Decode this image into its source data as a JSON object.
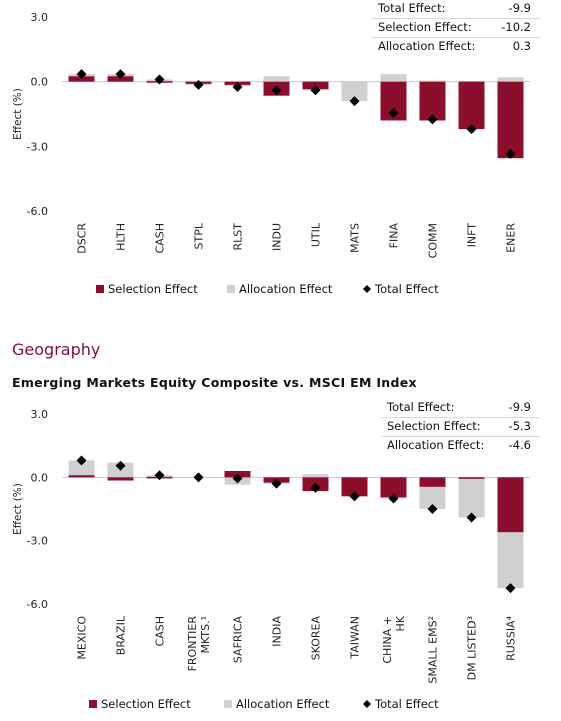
{
  "geography_section": {
    "heading": "Geography",
    "subtitle": "Emerging Markets Equity Composite vs. MSCI EM Index"
  },
  "chart_data": [
    {
      "type": "bar",
      "ylabel": "Effect (%)",
      "ylim": [
        -6.0,
        3.0
      ],
      "yticks": [
        "3.0",
        "0.0",
        "-3.0",
        "-6.0"
      ],
      "categories": [
        "DSCR",
        "HLTH",
        "CASH",
        "STPL",
        "RLST",
        "INDU",
        "UTIL",
        "MATS",
        "FINA",
        "COMM",
        "INFT",
        "ENER"
      ],
      "series": [
        {
          "name": "Selection Effect",
          "type": "bar",
          "color": "#8b0f2b",
          "values": [
            0.25,
            0.25,
            0.02,
            -0.1,
            -0.15,
            -0.65,
            -0.35,
            0.0,
            -1.8,
            -1.8,
            -2.2,
            -3.55
          ]
        },
        {
          "name": "Allocation Effect",
          "type": "bar",
          "color": "#d0d0d0",
          "values": [
            0.1,
            0.1,
            0.08,
            -0.05,
            -0.05,
            0.25,
            -0.05,
            -0.9,
            0.35,
            0.05,
            0.0,
            0.2
          ]
        },
        {
          "name": "Total Effect",
          "type": "marker",
          "color": "#000000",
          "values": [
            0.35,
            0.35,
            0.1,
            -0.15,
            -0.25,
            -0.4,
            -0.4,
            -0.9,
            -1.45,
            -1.75,
            -2.2,
            -3.35
          ]
        }
      ],
      "summary": [
        {
          "label": "Total Effect:",
          "value": "-9.9"
        },
        {
          "label": "Selection Effect:",
          "value": "-10.2"
        },
        {
          "label": "Allocation Effect:",
          "value": "0.3"
        }
      ],
      "legend": [
        "Selection Effect",
        "Allocation Effect",
        "Total Effect"
      ],
      "legend_position": "bottom",
      "grid": false
    },
    {
      "type": "bar",
      "ylabel": "Effect (%)",
      "ylim": [
        -6.0,
        3.0
      ],
      "yticks": [
        "3.0",
        "0.0",
        "-3.0",
        "-6.0"
      ],
      "categories": [
        [
          "MEXICO"
        ],
        [
          "BRAZIL"
        ],
        [
          "CASH"
        ],
        [
          "FRONTIER",
          "MKTS.¹"
        ],
        [
          "SAFRICA"
        ],
        [
          "INDIA"
        ],
        [
          "SKOREA"
        ],
        [
          "TAIWAN"
        ],
        [
          "CHINA +",
          "HK"
        ],
        [
          "SMALL EMS²"
        ],
        [
          "DM LISTED³"
        ],
        [
          "RUSSIA⁴"
        ]
      ],
      "series": [
        {
          "name": "Selection Effect",
          "type": "bar",
          "color": "#8b0f2b",
          "values": [
            0.1,
            -0.15,
            0.02,
            0.0,
            0.3,
            -0.25,
            -0.65,
            -0.9,
            -0.95,
            -0.45,
            -0.05,
            -2.6
          ]
        },
        {
          "name": "Allocation Effect",
          "type": "bar",
          "color": "#d0d0d0",
          "values": [
            0.7,
            0.7,
            0.08,
            0.0,
            -0.35,
            -0.05,
            0.15,
            0.0,
            -0.05,
            -1.05,
            -1.85,
            -2.65
          ]
        },
        {
          "name": "Total Effect",
          "type": "marker",
          "color": "#000000",
          "values": [
            0.8,
            0.55,
            0.1,
            0.0,
            -0.05,
            -0.3,
            -0.5,
            -0.9,
            -1.0,
            -1.5,
            -1.9,
            -5.25
          ]
        }
      ],
      "summary": [
        {
          "label": "Total Effect:",
          "value": "-9.9"
        },
        {
          "label": "Selection Effect:",
          "value": "-5.3"
        },
        {
          "label": "Allocation Effect:",
          "value": "-4.6"
        }
      ],
      "legend": [
        "Selection Effect",
        "Allocation Effect",
        "Total Effect"
      ],
      "legend_position": "bottom",
      "grid": false
    }
  ]
}
